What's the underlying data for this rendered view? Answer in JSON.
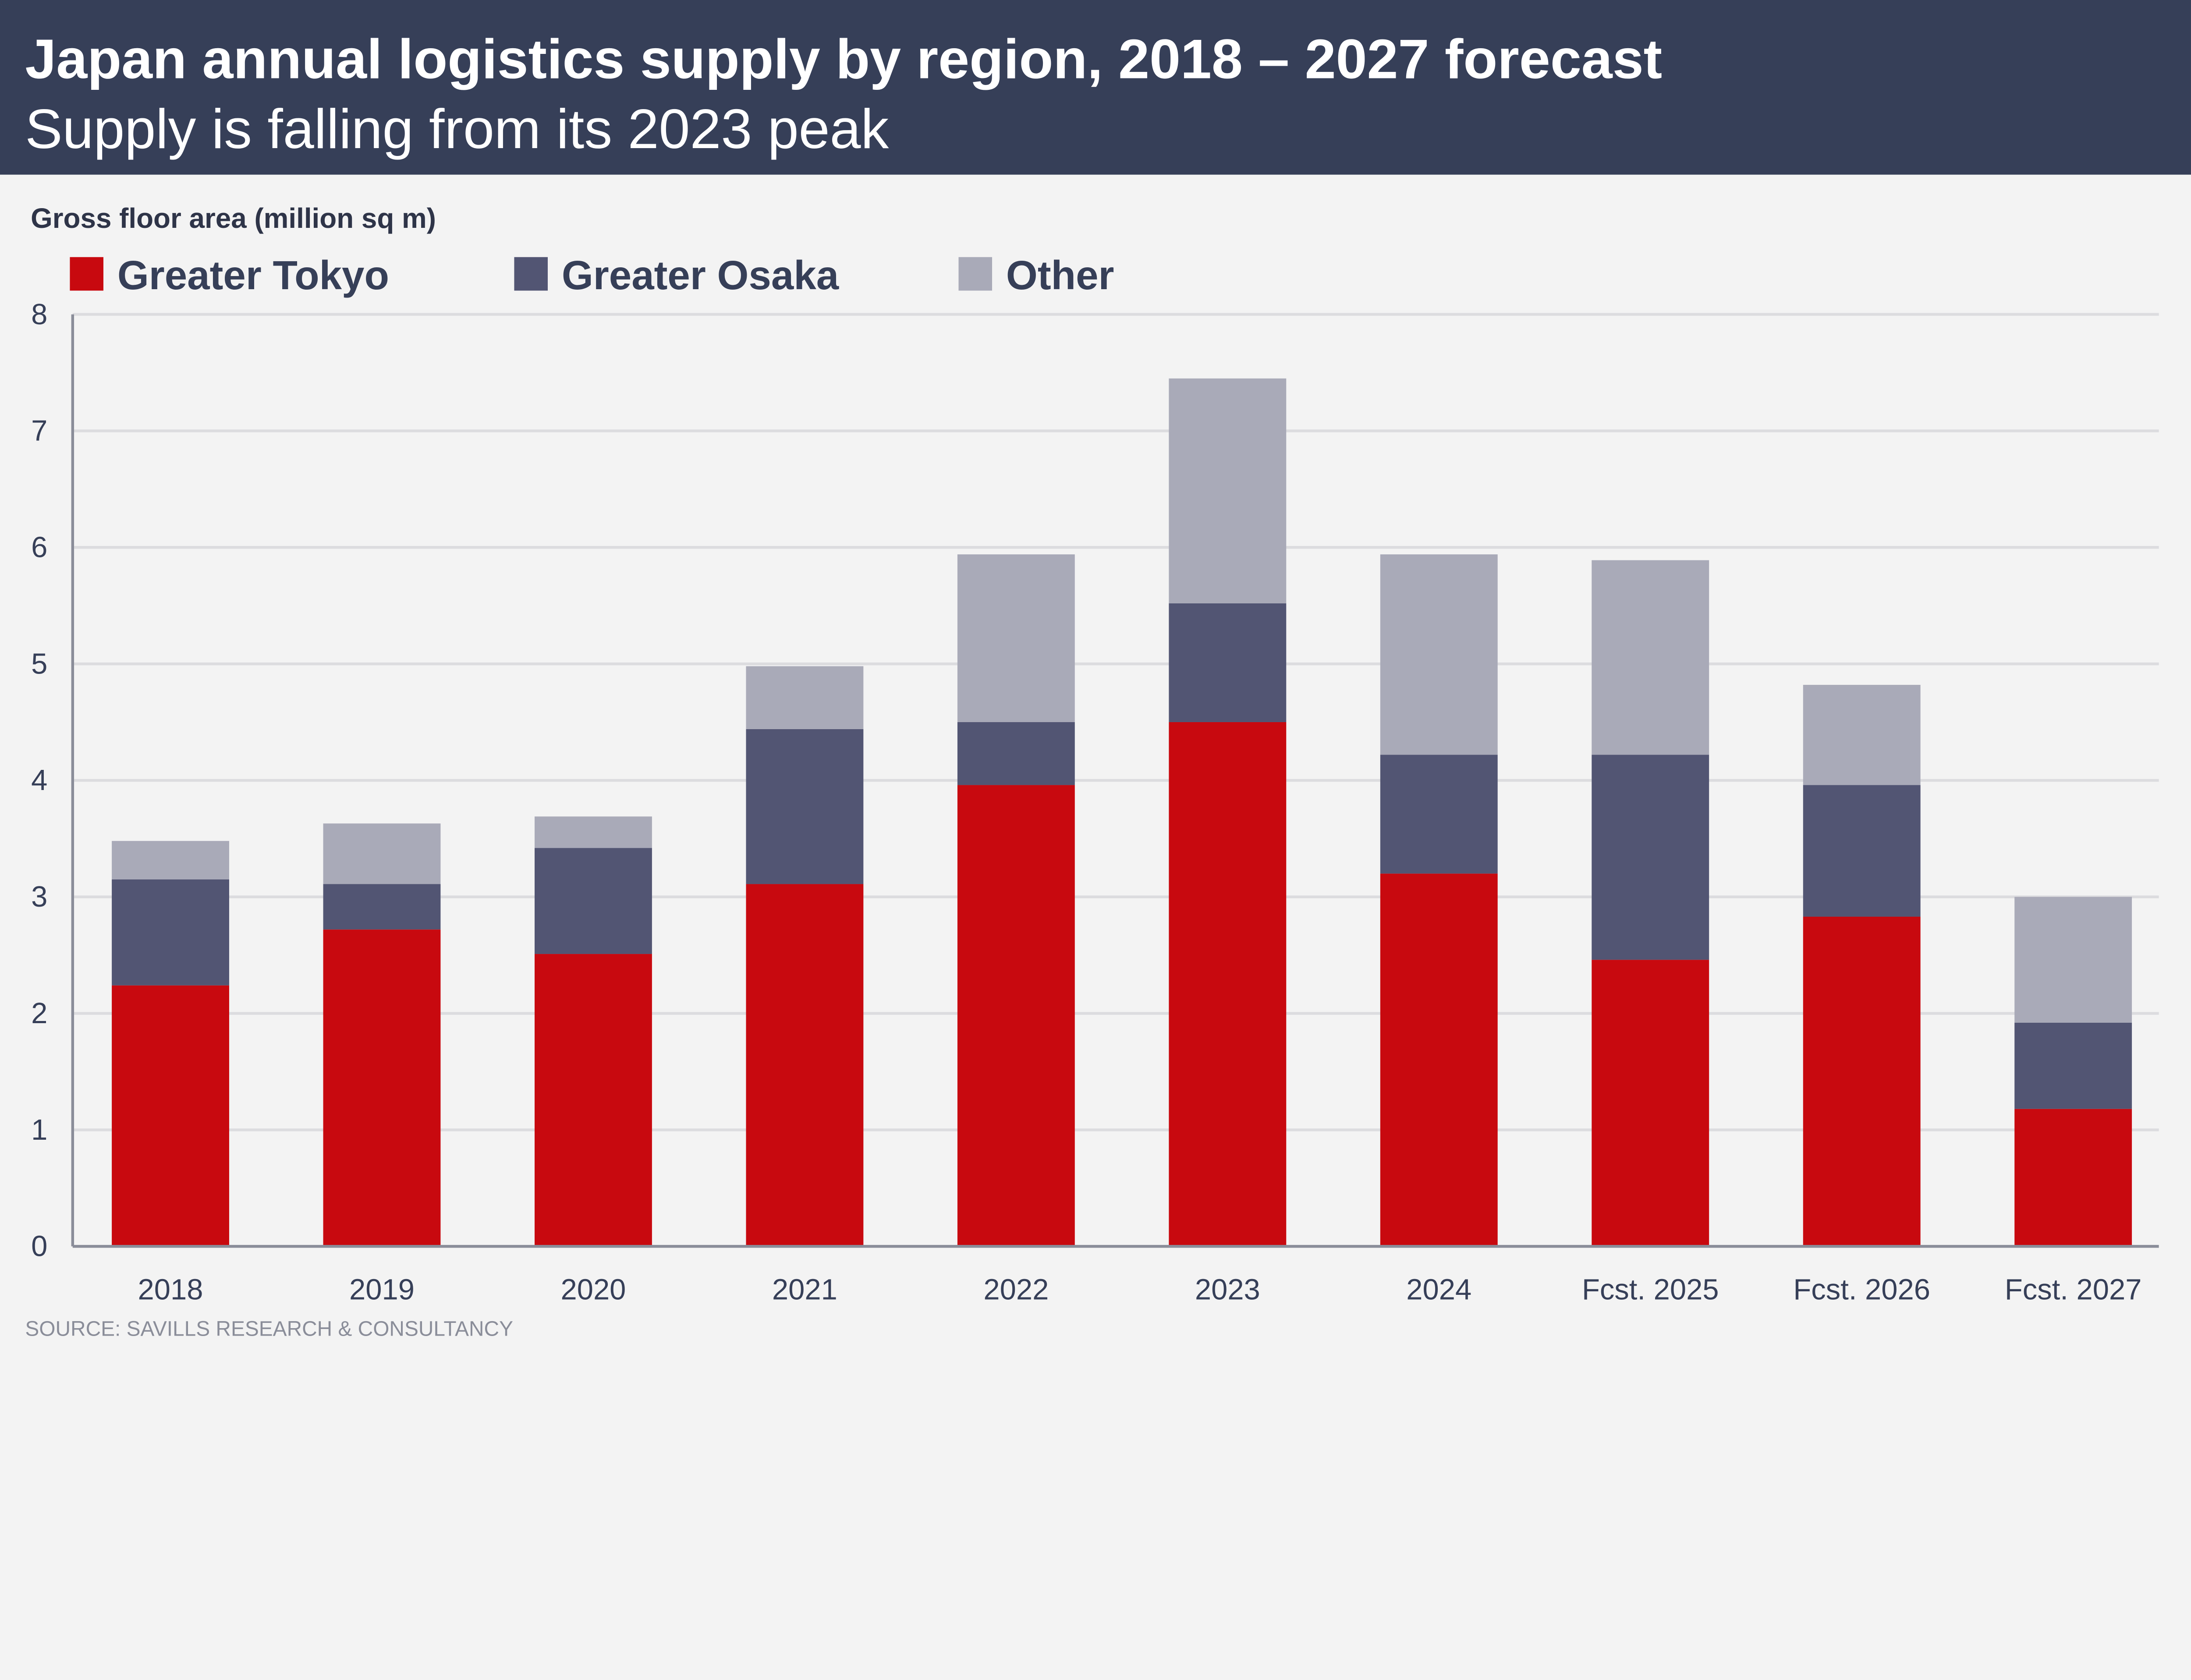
{
  "header": {
    "title": "Japan annual logistics supply by region, 2018 – 2027 forecast",
    "subtitle": "Supply is falling from its 2023 peak"
  },
  "source": "SOURCE: SAVILLS RESEARCH & CONSULTANCY",
  "colors": {
    "header_bg": "#363f58",
    "background": "#f3f3f3",
    "tokyo": "#c8090f",
    "osaka": "#525573",
    "other": "#a9aab8"
  },
  "chart_data": {
    "type": "bar",
    "stacked": true,
    "title": "Japan annual logistics supply by region, 2018 – 2027 forecast",
    "subtitle": "Supply is falling from its 2023 peak",
    "xlabel": "",
    "ylabel": "Gross floor area (million sq m)",
    "ylim": [
      0,
      8
    ],
    "yticks": [
      "0",
      "1",
      "2",
      "3",
      "4",
      "5",
      "6",
      "7",
      "8"
    ],
    "grid": true,
    "legend_position": "top-left",
    "categories": [
      "2018",
      "2019",
      "2020",
      "2021",
      "2022",
      "2023",
      "2024",
      "Fcst. 2025",
      "Fcst. 2026",
      "Fcst. 2027"
    ],
    "series": [
      {
        "name": "Greater Tokyo",
        "color": "#c8090f",
        "values": [
          2.24,
          2.72,
          2.51,
          3.11,
          3.96,
          4.5,
          3.2,
          2.46,
          2.83,
          1.18
        ]
      },
      {
        "name": "Greater Osaka",
        "color": "#525573",
        "values": [
          0.91,
          0.39,
          0.91,
          1.33,
          0.54,
          1.02,
          1.02,
          1.76,
          1.13,
          0.74
        ]
      },
      {
        "name": "Other",
        "color": "#a9aab8",
        "values": [
          0.33,
          0.52,
          0.27,
          0.54,
          1.44,
          1.93,
          1.72,
          1.67,
          0.86,
          1.08
        ]
      }
    ]
  }
}
